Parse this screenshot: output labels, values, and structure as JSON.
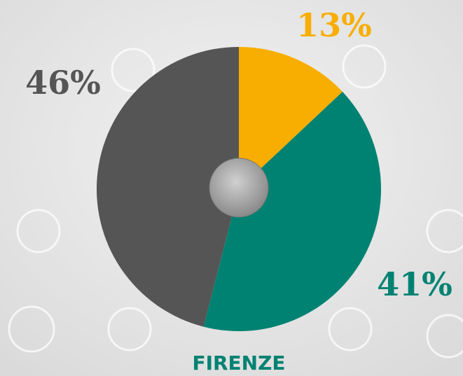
{
  "chart_data": {
    "type": "pie",
    "title": "FIRENZE",
    "categories": [
      null,
      null,
      null
    ],
    "values": [
      13,
      41,
      46
    ],
    "value_labels": [
      "13%",
      "41%",
      "46%"
    ],
    "colors": [
      "#f8ae00",
      "#008272",
      "#555555"
    ]
  }
}
